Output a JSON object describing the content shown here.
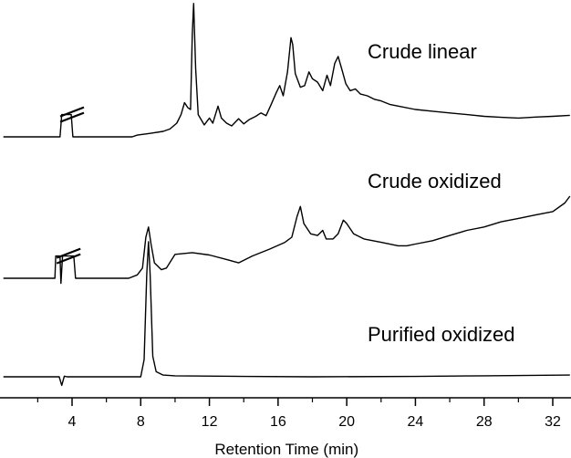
{
  "chart_data": {
    "type": "line",
    "xlabel": "Retention Time (min)",
    "ylabel": "",
    "xlim": [
      0,
      33
    ],
    "x_ticks": [
      4,
      8,
      12,
      16,
      20,
      24,
      28,
      32
    ],
    "x_tick_labels": [
      "4",
      "8",
      "12",
      "16",
      "20",
      "24",
      "28",
      "32"
    ],
    "y_axis_shown": false,
    "grid": false,
    "series": [
      {
        "name": "Crude linear",
        "color": "#000000",
        "axis_break_at": 4.0,
        "points": [
          [
            0.0,
            0.0
          ],
          [
            3.3,
            0.0
          ],
          [
            3.4,
            6.5
          ],
          [
            3.85,
            6.5
          ],
          [
            3.95,
            6.5
          ],
          [
            4.05,
            0.0
          ],
          [
            7.5,
            0.0
          ],
          [
            7.8,
            0.5
          ],
          [
            8.5,
            1.0
          ],
          [
            9.3,
            1.6
          ],
          [
            9.7,
            2.3
          ],
          [
            10.1,
            4.0
          ],
          [
            10.35,
            6.5
          ],
          [
            10.55,
            10.0
          ],
          [
            10.75,
            8.5
          ],
          [
            10.9,
            8.0
          ],
          [
            11.0,
            30.0
          ],
          [
            11.08,
            39.0
          ],
          [
            11.2,
            20.0
          ],
          [
            11.35,
            6.5
          ],
          [
            11.7,
            3.5
          ],
          [
            12.0,
            5.5
          ],
          [
            12.2,
            4.0
          ],
          [
            12.5,
            9.0
          ],
          [
            12.7,
            5.5
          ],
          [
            13.0,
            4.0
          ],
          [
            13.3,
            3.2
          ],
          [
            13.7,
            5.3
          ],
          [
            14.0,
            3.8
          ],
          [
            14.3,
            5.0
          ],
          [
            14.7,
            6.0
          ],
          [
            15.0,
            7.0
          ],
          [
            15.3,
            6.2
          ],
          [
            15.6,
            9.5
          ],
          [
            15.9,
            13.0
          ],
          [
            16.1,
            15.0
          ],
          [
            16.3,
            12.0
          ],
          [
            16.55,
            19.0
          ],
          [
            16.75,
            29.0
          ],
          [
            16.85,
            27.0
          ],
          [
            17.0,
            18.5
          ],
          [
            17.3,
            14.5
          ],
          [
            17.55,
            15.0
          ],
          [
            17.8,
            19.0
          ],
          [
            18.0,
            17.0
          ],
          [
            18.3,
            16.0
          ],
          [
            18.6,
            13.5
          ],
          [
            18.85,
            18.0
          ],
          [
            19.05,
            15.0
          ],
          [
            19.3,
            21.5
          ],
          [
            19.5,
            23.5
          ],
          [
            19.7,
            20.0
          ],
          [
            19.95,
            15.5
          ],
          [
            20.2,
            13.5
          ],
          [
            20.5,
            14.0
          ],
          [
            20.8,
            12.5
          ],
          [
            21.2,
            12.0
          ],
          [
            21.6,
            11.0
          ],
          [
            22.0,
            10.5
          ],
          [
            22.5,
            9.5
          ],
          [
            23.0,
            9.0
          ],
          [
            24.0,
            8.0
          ],
          [
            25.0,
            7.5
          ],
          [
            26.0,
            7.0
          ],
          [
            27.0,
            6.5
          ],
          [
            28.0,
            6.0
          ],
          [
            29.0,
            5.7
          ],
          [
            30.0,
            5.5
          ],
          [
            31.0,
            5.8
          ],
          [
            32.0,
            6.0
          ],
          [
            33.0,
            6.3
          ]
        ]
      },
      {
        "name": "Crude oxidized",
        "color": "#000000",
        "axis_break_at": 3.8,
        "points": [
          [
            0.0,
            0.0
          ],
          [
            3.0,
            0.0
          ],
          [
            3.05,
            6.5
          ],
          [
            3.3,
            6.5
          ],
          [
            3.35,
            -1.5
          ],
          [
            3.45,
            6.5
          ],
          [
            4.1,
            6.5
          ],
          [
            4.2,
            0.0
          ],
          [
            7.3,
            0.0
          ],
          [
            7.8,
            1.0
          ],
          [
            8.1,
            3.0
          ],
          [
            8.3,
            12.0
          ],
          [
            8.45,
            15.0
          ],
          [
            8.6,
            10.0
          ],
          [
            8.8,
            4.5
          ],
          [
            9.2,
            2.5
          ],
          [
            9.5,
            3.0
          ],
          [
            10.0,
            7.0
          ],
          [
            11.0,
            7.5
          ],
          [
            12.0,
            6.8
          ],
          [
            13.0,
            5.5
          ],
          [
            13.7,
            4.5
          ],
          [
            14.5,
            6.5
          ],
          [
            15.5,
            8.5
          ],
          [
            16.4,
            10.5
          ],
          [
            16.8,
            12.0
          ],
          [
            17.1,
            18.0
          ],
          [
            17.3,
            21.0
          ],
          [
            17.5,
            16.0
          ],
          [
            17.9,
            13.0
          ],
          [
            18.3,
            12.5
          ],
          [
            18.6,
            14.0
          ],
          [
            18.8,
            11.5
          ],
          [
            19.2,
            11.5
          ],
          [
            19.5,
            13.0
          ],
          [
            19.8,
            17.0
          ],
          [
            20.0,
            16.0
          ],
          [
            20.4,
            13.0
          ],
          [
            21.0,
            11.5
          ],
          [
            22.0,
            10.5
          ],
          [
            23.0,
            9.5
          ],
          [
            23.5,
            9.5
          ],
          [
            24.0,
            10.0
          ],
          [
            25.0,
            11.0
          ],
          [
            26.0,
            12.5
          ],
          [
            27.0,
            14.0
          ],
          [
            28.0,
            15.0
          ],
          [
            29.0,
            16.5
          ],
          [
            30.0,
            17.5
          ],
          [
            31.0,
            18.5
          ],
          [
            32.0,
            19.5
          ],
          [
            32.7,
            22.0
          ],
          [
            33.0,
            24.0
          ]
        ]
      },
      {
        "name": "Purified oxidized",
        "color": "#000000",
        "points": [
          [
            0.0,
            0.0
          ],
          [
            3.0,
            0.0
          ],
          [
            3.25,
            0.0
          ],
          [
            3.4,
            -2.5
          ],
          [
            3.55,
            0.2
          ],
          [
            3.7,
            0.0
          ],
          [
            8.0,
            0.0
          ],
          [
            8.2,
            5.0
          ],
          [
            8.35,
            30.0
          ],
          [
            8.45,
            39.5
          ],
          [
            8.55,
            30.0
          ],
          [
            8.7,
            6.0
          ],
          [
            8.9,
            1.5
          ],
          [
            9.3,
            0.5
          ],
          [
            10.0,
            0.3
          ],
          [
            14.0,
            0.1
          ],
          [
            18.0,
            0.0
          ],
          [
            24.0,
            0.1
          ],
          [
            28.0,
            0.3
          ],
          [
            33.0,
            0.5
          ]
        ]
      }
    ]
  }
}
